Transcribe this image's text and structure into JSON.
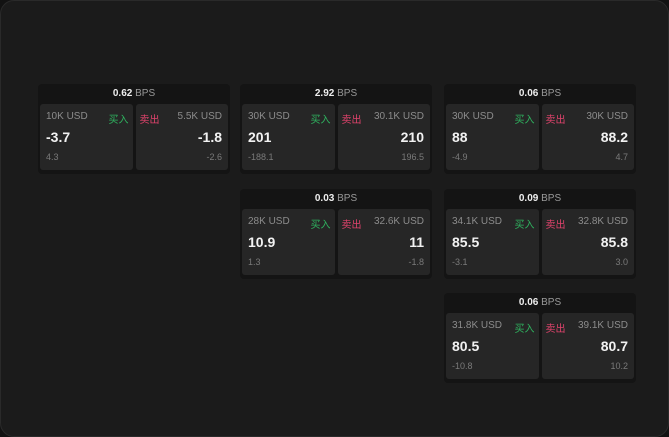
{
  "unit": "BPS",
  "buy_label": "买入",
  "sell_label": "卖出",
  "colors": {
    "buy": "#2fb35f",
    "sell": "#e0436c"
  },
  "cards": [
    {
      "spread": "0.62",
      "bid": {
        "size": "10K USD",
        "price": "-3.7",
        "change": "4.3"
      },
      "ask": {
        "size": "5.5K USD",
        "price": "-1.8",
        "change": "-2.6"
      }
    },
    {
      "spread": "2.92",
      "bid": {
        "size": "30K USD",
        "price": "201",
        "change": "-188.1"
      },
      "ask": {
        "size": "30.1K USD",
        "price": "210",
        "change": "196.5"
      }
    },
    {
      "spread": "0.06",
      "bid": {
        "size": "30K USD",
        "price": "88",
        "change": "-4.9"
      },
      "ask": {
        "size": "30K USD",
        "price": "88.2",
        "change": "4.7"
      }
    },
    {
      "spread": "0.03",
      "bid": {
        "size": "28K USD",
        "price": "10.9",
        "change": "1.3"
      },
      "ask": {
        "size": "32.6K USD",
        "price": "11",
        "change": "-1.8"
      }
    },
    {
      "spread": "0.09",
      "bid": {
        "size": "34.1K USD",
        "price": "85.5",
        "change": "-3.1"
      },
      "ask": {
        "size": "32.8K USD",
        "price": "85.8",
        "change": "3.0"
      }
    },
    {
      "spread": "0.06",
      "bid": {
        "size": "31.8K USD",
        "price": "80.5",
        "change": "-10.8"
      },
      "ask": {
        "size": "39.1K USD",
        "price": "80.7",
        "change": "10.2"
      }
    }
  ]
}
